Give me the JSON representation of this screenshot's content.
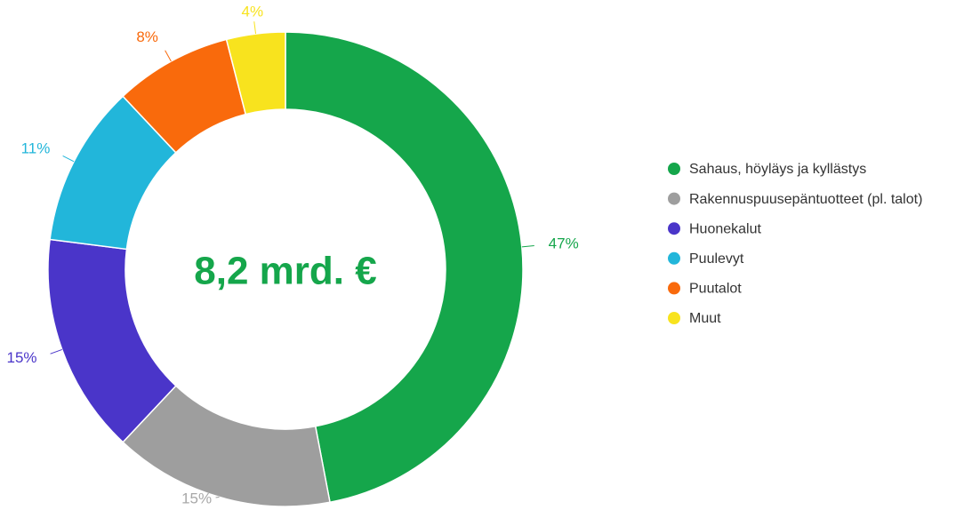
{
  "chart_data": {
    "type": "donut",
    "center_label": "8,2 mrd. €",
    "categories": [
      "Sahaus, höyläys ja kyllästys",
      "Rakennuspuusepäntuotteet (pl. talot)",
      "Huonekalut",
      "Puulevyt",
      "Puutalot",
      "Muut"
    ],
    "values": [
      47,
      15,
      15,
      11,
      8,
      4
    ],
    "value_labels": [
      "47%",
      "15%",
      "15%",
      "11%",
      "8%",
      "4%"
    ],
    "colors": [
      "#15a64b",
      "#9e9e9e",
      "#4a35c9",
      "#22b6da",
      "#f96a0c",
      "#f8e31e"
    ],
    "legend": "right"
  }
}
